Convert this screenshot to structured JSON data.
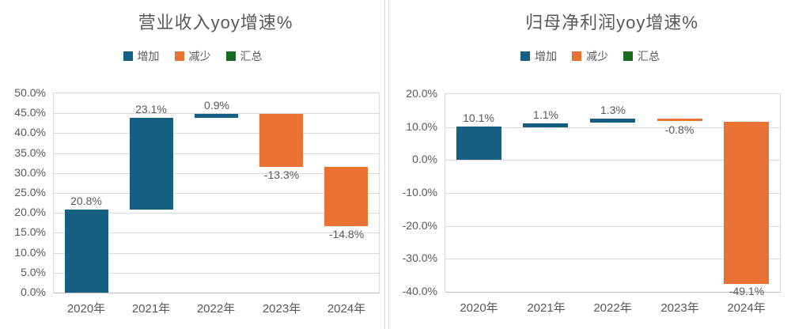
{
  "colors": {
    "increase": "#156082",
    "decrease": "#E97132",
    "total": "#196B24",
    "grid": "#D9D9D9",
    "axis_line": "#BFBFBF",
    "text": "#595959",
    "background": "#ffffff"
  },
  "legend": {
    "items": [
      {
        "label": "增加",
        "color_key": "increase"
      },
      {
        "label": "减少",
        "color_key": "decrease"
      },
      {
        "label": "汇总",
        "color_key": "total"
      }
    ]
  },
  "chart_data": [
    {
      "type": "bar",
      "subtype": "waterfall",
      "title": "营业收入yoy增速%",
      "categories": [
        "2020年",
        "2021年",
        "2022年",
        "2023年",
        "2024年"
      ],
      "values": [
        20.8,
        23.1,
        0.9,
        -13.3,
        -14.8
      ],
      "value_labels": [
        "20.8%",
        "23.1%",
        "0.9%",
        "-13.3%",
        "-14.8%"
      ],
      "bar_types": [
        "increase",
        "increase",
        "increase",
        "decrease",
        "decrease"
      ],
      "cumulative_start": [
        0,
        20.8,
        43.9,
        44.8,
        31.5
      ],
      "cumulative_end": [
        20.8,
        43.9,
        44.8,
        31.5,
        16.7
      ],
      "legend_entries": [
        "增加",
        "减少",
        "汇总"
      ],
      "ylim": [
        0,
        50
      ],
      "ytick_step": 5,
      "ytick_labels": [
        "50.0%",
        "45.0%",
        "40.0%",
        "35.0%",
        "30.0%",
        "25.0%",
        "20.0%",
        "15.0%",
        "10.0%",
        "5.0%",
        "0.0%"
      ],
      "grid": true,
      "legend_position": "top"
    },
    {
      "type": "bar",
      "subtype": "waterfall",
      "title": "归母净利润yoy增速%",
      "categories": [
        "2020年",
        "2021年",
        "2022年",
        "2023年",
        "2024年"
      ],
      "values": [
        10.1,
        1.1,
        1.3,
        -0.8,
        -49.1
      ],
      "value_labels": [
        "10.1%",
        "1.1%",
        "1.3%",
        "-0.8%",
        "-49.1%"
      ],
      "bar_types": [
        "increase",
        "increase",
        "increase",
        "decrease",
        "decrease"
      ],
      "cumulative_start": [
        0,
        10.1,
        11.2,
        12.5,
        11.7
      ],
      "cumulative_end": [
        10.1,
        11.2,
        12.5,
        11.7,
        -37.4
      ],
      "legend_entries": [
        "增加",
        "减少",
        "汇总"
      ],
      "ylim": [
        -40,
        20
      ],
      "ytick_step": 10,
      "ytick_labels": [
        "20.0%",
        "10.0%",
        "0.0%",
        "-10.0%",
        "-20.0%",
        "-30.0%",
        "-40.0%"
      ],
      "grid": true,
      "legend_position": "top"
    }
  ]
}
